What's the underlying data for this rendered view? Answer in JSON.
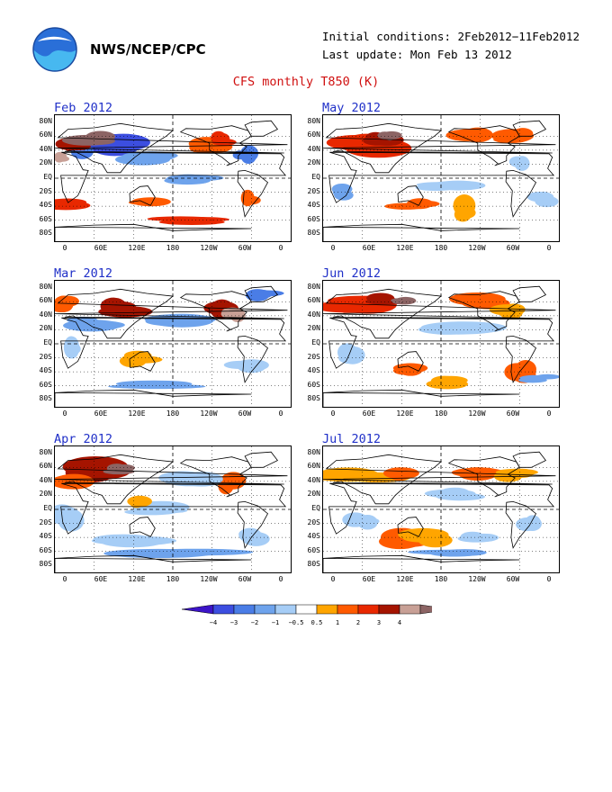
{
  "header": {
    "org": "NWS/NCEP/CPC",
    "initial_conditions": "Initial conditions: 2Feb2012−11Feb2012",
    "last_update": "Last update: Mon Feb 13 2012",
    "title": "CFS monthly T850 (K)",
    "logo": "noaa-logo"
  },
  "axes": {
    "lat_ticks": [
      "80N",
      "60N",
      "40N",
      "20N",
      "EQ",
      "20S",
      "40S",
      "60S",
      "80S"
    ],
    "lon_ticks": [
      "0",
      "60E",
      "120E",
      "180",
      "120W",
      "60W",
      "0"
    ]
  },
  "panels": [
    {
      "label": "Feb 2012"
    },
    {
      "label": "May 2012"
    },
    {
      "label": "Mar 2012"
    },
    {
      "label": "Jun 2012"
    },
    {
      "label": "Apr 2012"
    },
    {
      "label": "Jul 2012"
    }
  ],
  "colorbar": {
    "labels": [
      "−4",
      "−3",
      "−2",
      "−1",
      "−0.5",
      "0.5",
      "1",
      "2",
      "3",
      "4"
    ],
    "colors": [
      "#3c14c8",
      "#3c4ee0",
      "#4a7de6",
      "#6ea3ec",
      "#a6cdf6",
      "#ffffff",
      "#ffa500",
      "#ff5a00",
      "#e82800",
      "#a51400",
      "#c8a096",
      "#8c6464"
    ]
  }
}
